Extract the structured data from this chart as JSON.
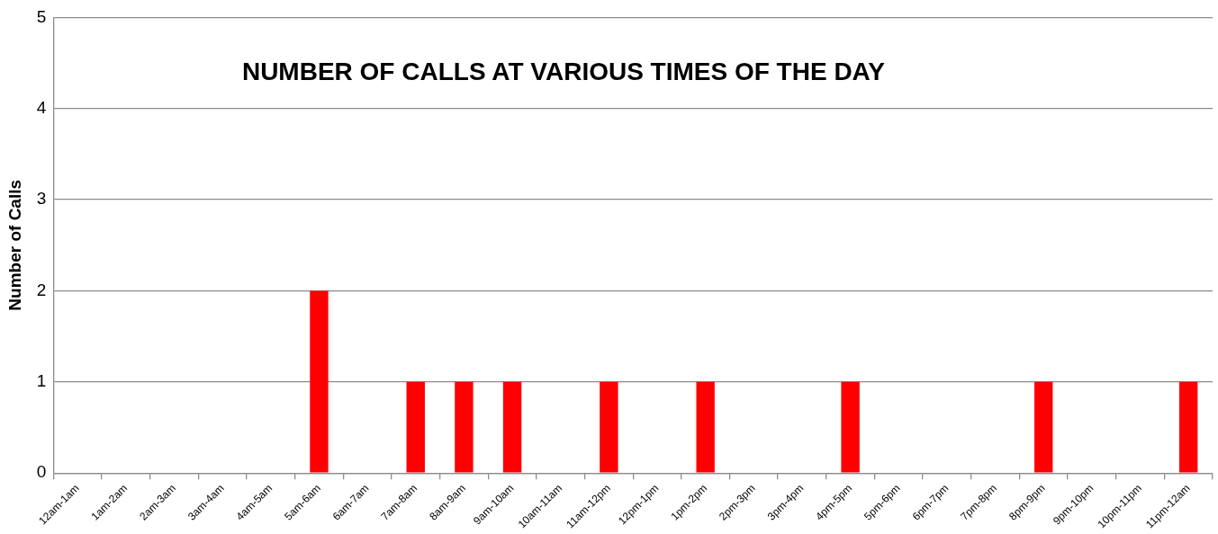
{
  "chart_data": {
    "type": "bar",
    "title": "NUMBER OF CALLS AT VARIOUS TIMES OF THE DAY",
    "ylabel": "Number of Calls",
    "categories": [
      "12am-1am",
      "1am-2am",
      "2am-3am",
      "3am-4am",
      "4am-5am",
      "5am-6am",
      "6am-7am",
      "7am-8am",
      "8am-9am",
      "9am-10am",
      "10am-11am",
      "11am-12pm",
      "12pm-1pm",
      "1pm-2pm",
      "2pm-3pm",
      "3pm-4pm",
      "4pm-5pm",
      "5pm-6pm",
      "6pm-7pm",
      "7pm-8pm",
      "8pm-9pm",
      "9pm-10pm",
      "10pm-11pm",
      "11pm-12am"
    ],
    "values": [
      0,
      0,
      0,
      0,
      0,
      2,
      0,
      1,
      1,
      1,
      0,
      1,
      0,
      1,
      0,
      0,
      1,
      0,
      0,
      0,
      1,
      0,
      0,
      1
    ],
    "color": "#ff0000",
    "ylim": [
      0,
      5
    ],
    "yticks": [
      0,
      1,
      2,
      3,
      4,
      5
    ],
    "grid": "y",
    "legend": false
  }
}
